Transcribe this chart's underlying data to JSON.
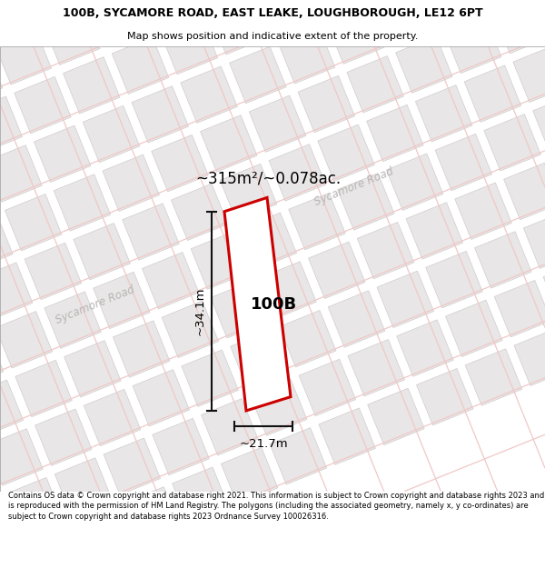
{
  "title_line1": "100B, SYCAMORE ROAD, EAST LEAKE, LOUGHBOROUGH, LE12 6PT",
  "title_line2": "Map shows position and indicative extent of the property.",
  "footer_text": "Contains OS data © Crown copyright and database right 2021. This information is subject to Crown copyright and database rights 2023 and is reproduced with the permission of HM Land Registry. The polygons (including the associated geometry, namely x, y co-ordinates) are subject to Crown copyright and database rights 2023 Ordnance Survey 100026316.",
  "area_label": "~315m²/~0.078ac.",
  "width_label": "~21.7m",
  "height_label": "~34.1m",
  "plot_label": "100B",
  "map_bg": "#f7f4f4",
  "road_line_color": "#f0c8c8",
  "building_fill": "#e8e6e6",
  "building_stroke": "#d0cccc",
  "plot_fill": "#ffffff",
  "plot_stroke": "#cc0000",
  "dim_line_color": "#111111",
  "road_label_color": "#b8b4b4",
  "sycamore_road_label": "Sycamore Road",
  "title_fontsize": 9.0,
  "subtitle_fontsize": 8.0,
  "footer_fontsize": 6.0
}
